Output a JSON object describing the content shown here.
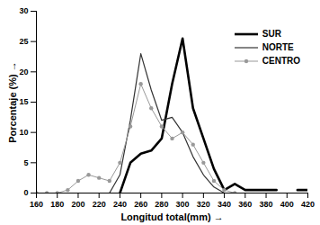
{
  "chart_data": {
    "type": "line",
    "x_label": "Longitud total(mm)",
    "y_label": "Porcentaje (%)",
    "x": [
      160,
      170,
      180,
      190,
      200,
      210,
      220,
      230,
      240,
      250,
      260,
      270,
      280,
      290,
      300,
      310,
      320,
      330,
      340,
      350,
      360,
      370,
      380,
      390,
      400,
      410,
      420
    ],
    "series": [
      {
        "name": "SUR",
        "color": "#000000",
        "line_style": "solid",
        "marker": "none",
        "values": [
          null,
          null,
          null,
          null,
          null,
          null,
          null,
          null,
          0,
          5,
          6.5,
          7,
          9,
          18,
          25.5,
          14,
          9,
          4,
          0.5,
          1.5,
          0.5,
          0.5,
          0.5,
          0.5,
          null,
          0.5,
          0.5
        ]
      },
      {
        "name": "NORTE",
        "color": "#333333",
        "line_style": "solid",
        "marker": "none",
        "values": [
          null,
          null,
          null,
          null,
          null,
          null,
          null,
          0,
          3,
          12,
          23,
          17,
          12,
          12.5,
          10,
          6,
          3,
          1,
          0,
          null,
          null,
          null,
          null,
          null,
          null,
          null,
          null
        ]
      },
      {
        "name": "CENTRO",
        "color": "#999999",
        "line_style": "solid",
        "marker": "circle",
        "values": [
          0,
          0,
          0,
          0.5,
          2,
          3,
          2.5,
          2,
          5,
          11,
          18,
          14,
          11,
          9,
          10,
          8,
          5,
          2,
          0.5,
          0,
          null,
          null,
          null,
          null,
          null,
          null,
          null
        ]
      }
    ],
    "xlim": [
      160,
      420
    ],
    "xticks": [
      160,
      180,
      200,
      220,
      240,
      260,
      280,
      300,
      320,
      340,
      360,
      380,
      400,
      420
    ],
    "ylim": [
      0,
      30
    ],
    "yticks": [
      0,
      5,
      10,
      15,
      20,
      25,
      30
    ],
    "grid": false,
    "legend": "upper right"
  }
}
